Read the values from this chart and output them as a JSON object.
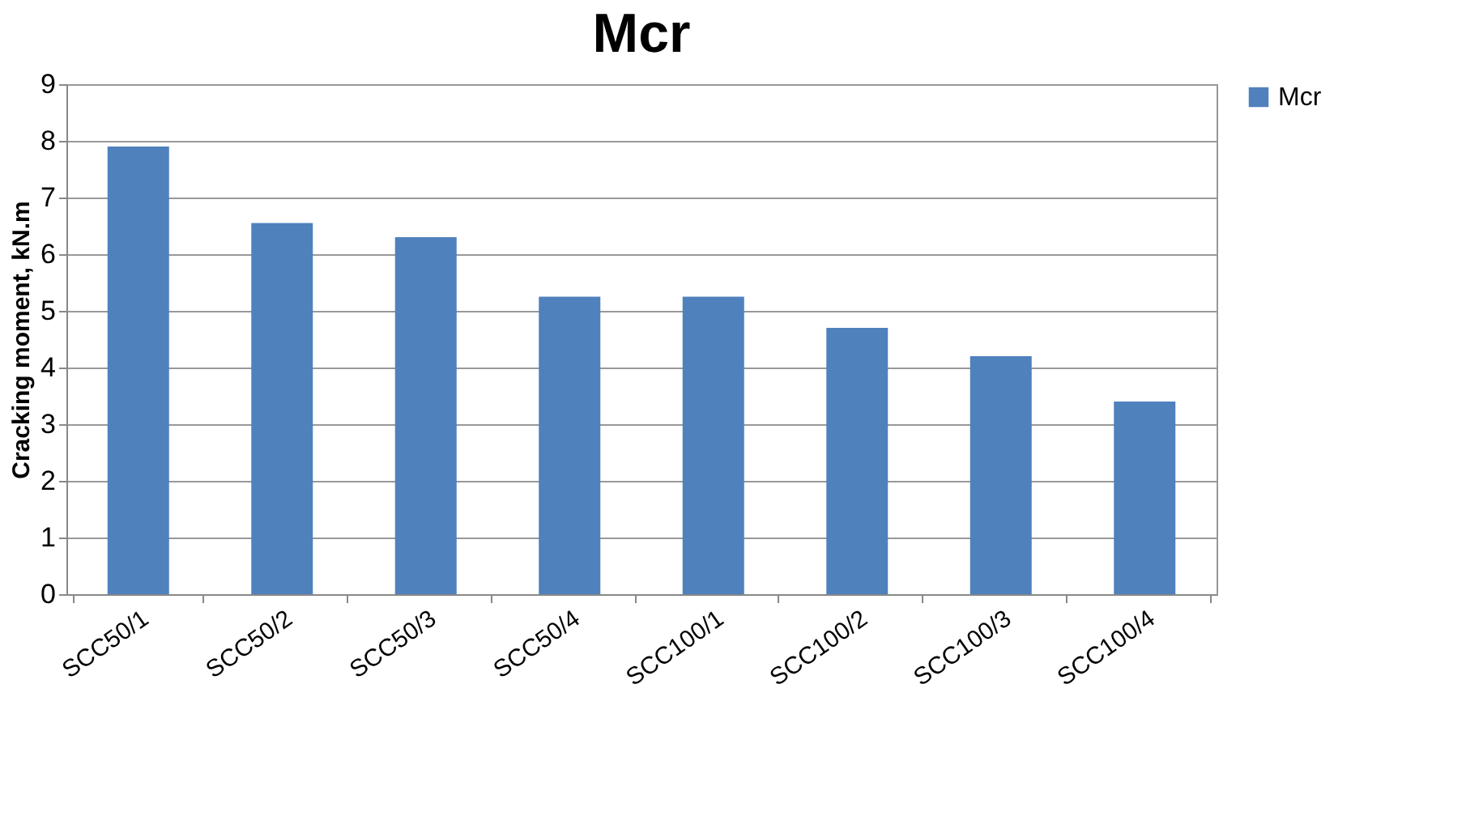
{
  "chart_data": {
    "type": "bar",
    "title": "Mcr",
    "ylabel": "Cracking moment, kN.m",
    "categories": [
      "SCC50/1",
      "SCC50/2",
      "SCC50/3",
      "SCC50/4",
      "SCC100/1",
      "SCC100/2",
      "SCC100/3",
      "SCC100/4"
    ],
    "series": [
      {
        "name": "Mcr",
        "color": "#4f81bd",
        "values": [
          7.9,
          6.55,
          6.3,
          5.25,
          5.25,
          4.7,
          4.2,
          3.4
        ]
      }
    ],
    "ylim": [
      0,
      9
    ],
    "yticks": [
      0,
      1,
      2,
      3,
      4,
      5,
      6,
      7,
      8,
      9
    ],
    "grid": "y",
    "legend": "right"
  }
}
